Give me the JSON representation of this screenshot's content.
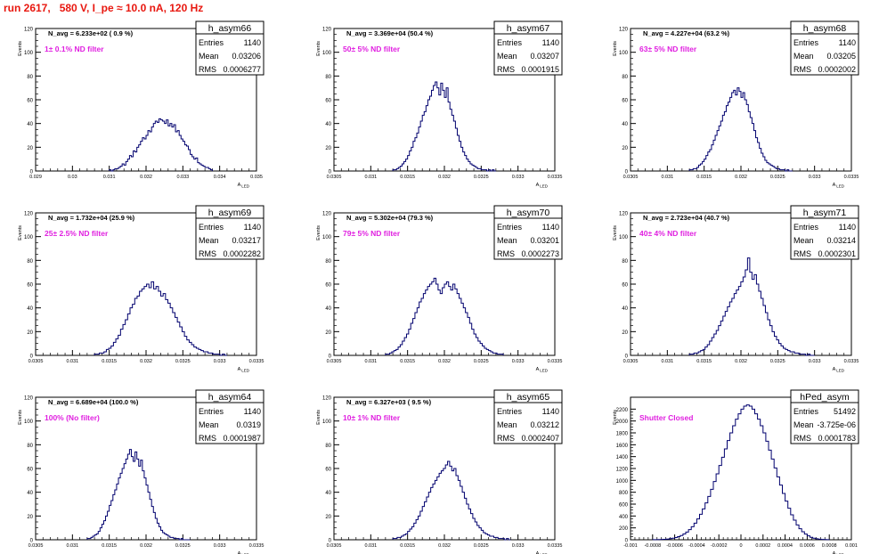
{
  "title": "run 2617,   580 V, I_pe ≈ 10.0 nA, 120 Hz",
  "stats_labels": {
    "entries": "Entries",
    "mean": "Mean",
    "rms": "RMS"
  },
  "y_axis_label": "Events",
  "x_axis_label": "A",
  "x_axis_label_sub": "LED",
  "colors": {
    "title": "#e8170f",
    "filter_label": "#e020e0",
    "hist": "#00006e",
    "frame": "#000000"
  },
  "chart_data": [
    {
      "type": "bar",
      "name": "h_asym66",
      "nav": "N_avg = 6.233e+02 ( 0.9 %)",
      "filter": "1± 0.1% ND filter",
      "stats": {
        "entries": "1140",
        "mean": "0.03206",
        "rms": "0.0006277"
      },
      "xlim": [
        0.029,
        0.035
      ],
      "ylim": [
        0,
        120
      ],
      "xticks": [
        "0.029",
        "0.03",
        "0.031",
        "0.032",
        "0.033",
        "0.034",
        "0.035"
      ],
      "yticks": [
        "0",
        "20",
        "40",
        "60",
        "80",
        "100",
        "120"
      ],
      "binning": {
        "lo": 0.031,
        "hi": 0.0338,
        "n": 56
      },
      "values": [
        1,
        0,
        1,
        2,
        2,
        3,
        4,
        6,
        5,
        8,
        10,
        13,
        12,
        17,
        16,
        20,
        22,
        25,
        28,
        27,
        30,
        34,
        33,
        37,
        40,
        42,
        41,
        44,
        43,
        42,
        40,
        43,
        38,
        40,
        37,
        39,
        33,
        34,
        30,
        27,
        25,
        22,
        21,
        18,
        14,
        12,
        10,
        11,
        7,
        6,
        5,
        4,
        3,
        3,
        2,
        1
      ]
    },
    {
      "type": "bar",
      "name": "h_asym67",
      "nav": "N_avg = 3.369e+04 (50.4 %)",
      "filter": "50± 5% ND filter",
      "stats": {
        "entries": "1140",
        "mean": "0.03207",
        "rms": "0.0001915"
      },
      "xlim": [
        0.0305,
        0.0335
      ],
      "ylim": [
        0,
        120
      ],
      "xticks": [
        "0.0305",
        "0.031",
        "0.0315",
        "0.032",
        "0.0325",
        "0.033",
        "0.0335"
      ],
      "yticks": [
        "0",
        "20",
        "40",
        "60",
        "80",
        "100",
        "120"
      ],
      "binning": {
        "lo": 0.0313,
        "hi": 0.0327,
        "n": 56
      },
      "values": [
        1,
        1,
        2,
        3,
        4,
        6,
        8,
        10,
        13,
        17,
        20,
        25,
        28,
        32,
        37,
        42,
        47,
        50,
        55,
        60,
        63,
        68,
        72,
        75,
        70,
        64,
        74,
        68,
        62,
        70,
        58,
        52,
        47,
        42,
        36,
        30,
        25,
        20,
        16,
        13,
        10,
        8,
        6,
        5,
        4,
        3,
        2,
        2,
        1,
        1,
        1,
        0,
        1,
        0,
        1,
        0
      ]
    },
    {
      "type": "bar",
      "name": "h_asym68",
      "nav": "N_avg = 4.227e+04 (63.2 %)",
      "filter": "63± 5% ND filter",
      "stats": {
        "entries": "1140",
        "mean": "0.03205",
        "rms": "0.0002002"
      },
      "xlim": [
        0.0305,
        0.0335
      ],
      "ylim": [
        0,
        120
      ],
      "xticks": [
        "0.0305",
        "0.031",
        "0.0315",
        "0.032",
        "0.0325",
        "0.033",
        "0.0335"
      ],
      "yticks": [
        "0",
        "20",
        "40",
        "60",
        "80",
        "100",
        "120"
      ],
      "binning": {
        "lo": 0.0313,
        "hi": 0.0327,
        "n": 56
      },
      "values": [
        1,
        1,
        2,
        2,
        3,
        5,
        6,
        8,
        10,
        13,
        16,
        18,
        22,
        26,
        30,
        34,
        38,
        42,
        47,
        50,
        55,
        58,
        62,
        66,
        68,
        64,
        70,
        67,
        62,
        66,
        60,
        56,
        50,
        45,
        40,
        34,
        28,
        24,
        19,
        15,
        12,
        9,
        7,
        6,
        5,
        4,
        3,
        2,
        2,
        1,
        1,
        1,
        0,
        1,
        0,
        0
      ]
    },
    {
      "type": "bar",
      "name": "h_asym69",
      "nav": "N_avg = 1.732e+04 (25.9 %)",
      "filter": "25± 2.5% ND filter",
      "stats": {
        "entries": "1140",
        "mean": "0.03217",
        "rms": "0.0002282"
      },
      "xlim": [
        0.0305,
        0.0335
      ],
      "ylim": [
        0,
        120
      ],
      "xticks": [
        "0.0305",
        "0.031",
        "0.0315",
        "0.032",
        "0.0325",
        "0.033",
        "0.0335"
      ],
      "yticks": [
        "0",
        "20",
        "40",
        "60",
        "80",
        "100",
        "120"
      ],
      "binning": {
        "lo": 0.0313,
        "hi": 0.0331,
        "n": 56
      },
      "values": [
        1,
        1,
        2,
        2,
        3,
        5,
        6,
        8,
        11,
        14,
        17,
        22,
        26,
        30,
        35,
        40,
        43,
        48,
        50,
        54,
        56,
        58,
        60,
        57,
        62,
        56,
        58,
        54,
        50,
        52,
        47,
        44,
        40,
        36,
        32,
        28,
        24,
        20,
        16,
        13,
        11,
        9,
        7,
        6,
        5,
        4,
        3,
        3,
        2,
        2,
        1,
        1,
        1,
        0,
        1,
        0
      ]
    },
    {
      "type": "bar",
      "name": "h_asym70",
      "nav": "N_avg = 5.302e+04 (79.3 %)",
      "filter": "79± 5% ND filter",
      "stats": {
        "entries": "1140",
        "mean": "0.03201",
        "rms": "0.0002273"
      },
      "xlim": [
        0.0305,
        0.0335
      ],
      "ylim": [
        0,
        120
      ],
      "xticks": [
        "0.0305",
        "0.031",
        "0.0315",
        "0.032",
        "0.0325",
        "0.033",
        "0.0335"
      ],
      "yticks": [
        "0",
        "20",
        "40",
        "60",
        "80",
        "100",
        "120"
      ],
      "binning": {
        "lo": 0.0312,
        "hi": 0.0328,
        "n": 56
      },
      "values": [
        1,
        1,
        2,
        3,
        4,
        5,
        7,
        9,
        12,
        15,
        18,
        22,
        27,
        31,
        36,
        40,
        45,
        48,
        52,
        55,
        58,
        60,
        62,
        65,
        60,
        55,
        52,
        57,
        60,
        62,
        58,
        55,
        60,
        56,
        52,
        48,
        44,
        40,
        36,
        32,
        27,
        22,
        18,
        15,
        12,
        10,
        8,
        6,
        5,
        4,
        3,
        2,
        2,
        1,
        1,
        1
      ]
    },
    {
      "type": "bar",
      "name": "h_asym71",
      "nav": "N_avg = 2.723e+04 (40.7 %)",
      "filter": "40± 4% ND filter",
      "stats": {
        "entries": "1140",
        "mean": "0.03214",
        "rms": "0.0002301"
      },
      "xlim": [
        0.0305,
        0.0335
      ],
      "ylim": [
        0,
        120
      ],
      "xticks": [
        "0.0305",
        "0.031",
        "0.0315",
        "0.032",
        "0.0325",
        "0.033",
        "0.0335"
      ],
      "yticks": [
        "0",
        "20",
        "40",
        "60",
        "80",
        "100",
        "120"
      ],
      "binning": {
        "lo": 0.0313,
        "hi": 0.033,
        "n": 56
      },
      "values": [
        1,
        1,
        2,
        2,
        3,
        4,
        5,
        7,
        9,
        12,
        15,
        18,
        21,
        25,
        29,
        33,
        37,
        41,
        45,
        48,
        52,
        55,
        58,
        62,
        66,
        72,
        82,
        70,
        64,
        68,
        60,
        54,
        48,
        42,
        36,
        30,
        25,
        20,
        16,
        13,
        10,
        8,
        6,
        5,
        4,
        3,
        3,
        2,
        2,
        1,
        1,
        1,
        0,
        1,
        0,
        0
      ]
    },
    {
      "type": "bar",
      "name": "h_asym64",
      "nav": "N_avg = 6.689e+04 (100.0 %)",
      "filter": "100% (No filter)",
      "stats": {
        "entries": "1140",
        "mean": "0.0319",
        "rms": "0.0001987"
      },
      "xlim": [
        0.0305,
        0.0335
      ],
      "ylim": [
        0,
        120
      ],
      "xticks": [
        "0.0305",
        "0.031",
        "0.0315",
        "0.032",
        "0.0325",
        "0.033",
        "0.0335"
      ],
      "yticks": [
        "0",
        "20",
        "40",
        "60",
        "80",
        "100",
        "120"
      ],
      "binning": {
        "lo": 0.0312,
        "hi": 0.0326,
        "n": 56
      },
      "values": [
        1,
        1,
        2,
        3,
        4,
        5,
        7,
        10,
        13,
        16,
        20,
        24,
        29,
        33,
        38,
        42,
        47,
        52,
        56,
        60,
        64,
        68,
        72,
        76,
        70,
        66,
        74,
        68,
        62,
        67,
        58,
        52,
        46,
        40,
        34,
        28,
        23,
        18,
        14,
        11,
        8,
        6,
        5,
        4,
        3,
        2,
        2,
        1,
        1,
        1,
        0,
        1,
        0,
        0,
        0,
        0
      ]
    },
    {
      "type": "bar",
      "name": "h_asym65",
      "nav": "N_avg = 6.327e+03 ( 9.5 %)",
      "filter": "10± 1% ND filter",
      "stats": {
        "entries": "1140",
        "mean": "0.03212",
        "rms": "0.0002407"
      },
      "xlim": [
        0.0305,
        0.0335
      ],
      "ylim": [
        0,
        120
      ],
      "xticks": [
        "0.0305",
        "0.031",
        "0.0315",
        "0.032",
        "0.0325",
        "0.033",
        "0.0335"
      ],
      "yticks": [
        "0",
        "20",
        "40",
        "60",
        "80",
        "100",
        "120"
      ],
      "binning": {
        "lo": 0.0313,
        "hi": 0.0329,
        "n": 56
      },
      "values": [
        1,
        1,
        2,
        2,
        3,
        4,
        5,
        7,
        9,
        11,
        14,
        17,
        20,
        24,
        28,
        32,
        36,
        40,
        44,
        47,
        50,
        53,
        56,
        58,
        60,
        63,
        66,
        62,
        58,
        60,
        54,
        50,
        45,
        40,
        35,
        30,
        26,
        22,
        18,
        15,
        12,
        10,
        8,
        6,
        5,
        4,
        3,
        3,
        2,
        2,
        1,
        1,
        1,
        0,
        1,
        0
      ]
    },
    {
      "type": "bar",
      "name": "hPed_asym",
      "nav": "",
      "filter": "Shutter Closed",
      "stats": {
        "entries": "51492",
        "mean": "-3.725e-06",
        "rms": "0.0001783"
      },
      "xlim": [
        -0.001,
        0.001
      ],
      "ylim": [
        0,
        2400
      ],
      "xticks": [
        "-0.001",
        "-0.0008",
        "-0.0006",
        "-0.0004",
        "-0.0002",
        "0",
        "0.0002",
        "0.0004",
        "0.0006",
        "0.0008",
        "0.001"
      ],
      "yticks": [
        "0",
        "200",
        "400",
        "600",
        "800",
        "1000",
        "1200",
        "1400",
        "1600",
        "1800",
        "2000",
        "2200"
      ],
      "binning": {
        "lo": -0.0008,
        "hi": 0.0008,
        "n": 64
      },
      "values": [
        1,
        2,
        3,
        5,
        8,
        12,
        18,
        26,
        38,
        52,
        72,
        98,
        130,
        170,
        220,
        280,
        350,
        430,
        520,
        620,
        730,
        850,
        980,
        1110,
        1250,
        1390,
        1530,
        1670,
        1800,
        1920,
        2030,
        2120,
        2200,
        2250,
        2270,
        2250,
        2200,
        2120,
        2030,
        1920,
        1800,
        1660,
        1510,
        1360,
        1210,
        1060,
        920,
        780,
        650,
        530,
        420,
        330,
        250,
        185,
        135,
        95,
        65,
        42,
        27,
        17,
        10,
        6,
        3,
        2
      ]
    }
  ]
}
